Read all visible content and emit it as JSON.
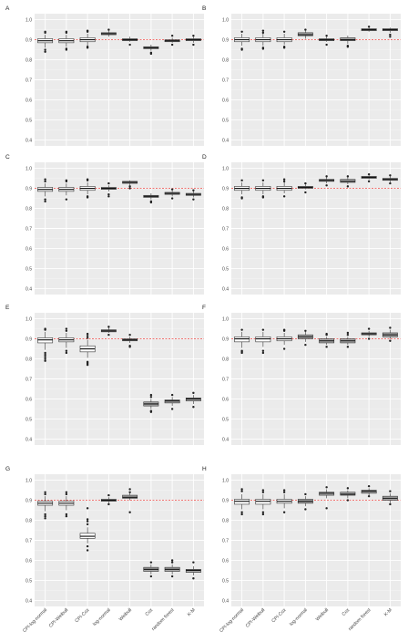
{
  "chart_data": {
    "type": "boxplot",
    "categories": [
      "CPI-log-normal",
      "CPI-Weibull",
      "CPI-Cox",
      "log-normal",
      "Weibull",
      "Cox",
      "random forest",
      "K-M"
    ],
    "ylim": [
      0.37,
      1.03
    ],
    "yticks": [
      "0.4",
      "0.5",
      "0.6",
      "0.7",
      "0.8",
      "0.9",
      "1.0"
    ],
    "reference_line": {
      "y": 0.9,
      "color": "#e8231f",
      "style": "dashed"
    },
    "grid": true,
    "colors": {
      "panel_bg": "#ebebeb",
      "grid": "#ffffff",
      "box_fill_cpi": "#ffffff",
      "box_fill_other": "#a8a8a8",
      "box_line": "#333333",
      "outlier": "#222222"
    },
    "panels": [
      {
        "label": "A",
        "boxes": [
          {
            "median": 0.895,
            "q1": 0.885,
            "q3": 0.905,
            "whisker_low": 0.86,
            "whisker_high": 0.925,
            "outliers": [
              0.84,
              0.85,
              0.935,
              0.94
            ]
          },
          {
            "median": 0.895,
            "q1": 0.885,
            "q3": 0.905,
            "whisker_low": 0.865,
            "whisker_high": 0.925,
            "outliers": [
              0.85,
              0.855,
              0.935,
              0.94
            ]
          },
          {
            "median": 0.9,
            "q1": 0.89,
            "q3": 0.91,
            "whisker_low": 0.87,
            "whisker_high": 0.93,
            "outliers": [
              0.86,
              0.865,
              0.94,
              0.945
            ]
          },
          {
            "median": 0.93,
            "q1": 0.925,
            "q3": 0.935,
            "whisker_low": 0.915,
            "whisker_high": 0.945,
            "outliers": [
              0.95
            ]
          },
          {
            "median": 0.9,
            "q1": 0.895,
            "q3": 0.905,
            "whisker_low": 0.89,
            "whisker_high": 0.915,
            "outliers": [
              0.875
            ]
          },
          {
            "median": 0.86,
            "q1": 0.855,
            "q3": 0.865,
            "whisker_low": 0.845,
            "whisker_high": 0.875,
            "outliers": [
              0.835,
              0.83
            ]
          },
          {
            "median": 0.895,
            "q1": 0.89,
            "q3": 0.9,
            "whisker_low": 0.885,
            "whisker_high": 0.91,
            "outliers": [
              0.875,
              0.92
            ]
          },
          {
            "median": 0.9,
            "q1": 0.895,
            "q3": 0.905,
            "whisker_low": 0.885,
            "whisker_high": 0.915,
            "outliers": [
              0.875,
              0.92
            ]
          }
        ]
      },
      {
        "label": "B",
        "boxes": [
          {
            "median": 0.9,
            "q1": 0.89,
            "q3": 0.91,
            "whisker_low": 0.87,
            "whisker_high": 0.93,
            "outliers": [
              0.85,
              0.855,
              0.94
            ]
          },
          {
            "median": 0.9,
            "q1": 0.89,
            "q3": 0.91,
            "whisker_low": 0.87,
            "whisker_high": 0.93,
            "outliers": [
              0.855,
              0.86,
              0.935,
              0.945
            ]
          },
          {
            "median": 0.9,
            "q1": 0.89,
            "q3": 0.91,
            "whisker_low": 0.875,
            "whisker_high": 0.93,
            "outliers": [
              0.86,
              0.865,
              0.94
            ]
          },
          {
            "median": 0.925,
            "q1": 0.92,
            "q3": 0.935,
            "whisker_low": 0.905,
            "whisker_high": 0.945,
            "outliers": [
              0.95
            ]
          },
          {
            "median": 0.9,
            "q1": 0.895,
            "q3": 0.905,
            "whisker_low": 0.89,
            "whisker_high": 0.915,
            "outliers": [
              0.875,
              0.92
            ]
          },
          {
            "median": 0.9,
            "q1": 0.895,
            "q3": 0.91,
            "whisker_low": 0.88,
            "whisker_high": 0.92,
            "outliers": [
              0.865,
              0.87
            ]
          },
          {
            "median": 0.95,
            "q1": 0.945,
            "q3": 0.955,
            "whisker_low": 0.94,
            "whisker_high": 0.96,
            "outliers": [
              0.965
            ]
          },
          {
            "median": 0.95,
            "q1": 0.945,
            "q3": 0.955,
            "whisker_low": 0.935,
            "whisker_high": 0.96,
            "outliers": [
              0.915,
              0.925
            ]
          }
        ]
      },
      {
        "label": "C",
        "boxes": [
          {
            "median": 0.895,
            "q1": 0.885,
            "q3": 0.905,
            "whisker_low": 0.86,
            "whisker_high": 0.925,
            "outliers": [
              0.835,
              0.845,
              0.935,
              0.945
            ]
          },
          {
            "median": 0.895,
            "q1": 0.885,
            "q3": 0.905,
            "whisker_low": 0.865,
            "whisker_high": 0.925,
            "outliers": [
              0.845,
              0.935,
              0.94
            ]
          },
          {
            "median": 0.9,
            "q1": 0.89,
            "q3": 0.91,
            "whisker_low": 0.87,
            "whisker_high": 0.93,
            "outliers": [
              0.855,
              0.86,
              0.94,
              0.945
            ]
          },
          {
            "median": 0.9,
            "q1": 0.895,
            "q3": 0.905,
            "whisker_low": 0.885,
            "whisker_high": 0.915,
            "outliers": [
              0.86,
              0.87,
              0.925
            ]
          },
          {
            "median": 0.93,
            "q1": 0.925,
            "q3": 0.935,
            "whisker_low": 0.915,
            "whisker_high": 0.94,
            "outliers": [
              0.9,
              0.91
            ]
          },
          {
            "median": 0.86,
            "q1": 0.855,
            "q3": 0.865,
            "whisker_low": 0.845,
            "whisker_high": 0.875,
            "outliers": [
              0.83,
              0.835
            ]
          },
          {
            "median": 0.875,
            "q1": 0.87,
            "q3": 0.88,
            "whisker_low": 0.86,
            "whisker_high": 0.89,
            "outliers": [
              0.85,
              0.895
            ]
          },
          {
            "median": 0.87,
            "q1": 0.865,
            "q3": 0.875,
            "whisker_low": 0.855,
            "whisker_high": 0.885,
            "outliers": [
              0.845,
              0.89
            ]
          }
        ]
      },
      {
        "label": "D",
        "boxes": [
          {
            "median": 0.9,
            "q1": 0.89,
            "q3": 0.91,
            "whisker_low": 0.87,
            "whisker_high": 0.93,
            "outliers": [
              0.85,
              0.855,
              0.94
            ]
          },
          {
            "median": 0.9,
            "q1": 0.89,
            "q3": 0.91,
            "whisker_low": 0.87,
            "whisker_high": 0.93,
            "outliers": [
              0.855,
              0.86,
              0.94
            ]
          },
          {
            "median": 0.9,
            "q1": 0.89,
            "q3": 0.91,
            "whisker_low": 0.875,
            "whisker_high": 0.93,
            "outliers": [
              0.86,
              0.935,
              0.945
            ]
          },
          {
            "median": 0.905,
            "q1": 0.9,
            "q3": 0.91,
            "whisker_low": 0.895,
            "whisker_high": 0.92,
            "outliers": [
              0.88,
              0.925
            ]
          },
          {
            "median": 0.94,
            "q1": 0.935,
            "q3": 0.945,
            "whisker_low": 0.925,
            "whisker_high": 0.955,
            "outliers": [
              0.915,
              0.96
            ]
          },
          {
            "median": 0.935,
            "q1": 0.93,
            "q3": 0.945,
            "whisker_low": 0.92,
            "whisker_high": 0.955,
            "outliers": [
              0.91,
              0.96
            ]
          },
          {
            "median": 0.955,
            "q1": 0.95,
            "q3": 0.96,
            "whisker_low": 0.945,
            "whisker_high": 0.965,
            "outliers": [
              0.935,
              0.97
            ]
          },
          {
            "median": 0.945,
            "q1": 0.94,
            "q3": 0.95,
            "whisker_low": 0.93,
            "whisker_high": 0.96,
            "outliers": [
              0.925,
              0.965
            ]
          }
        ]
      },
      {
        "label": "E",
        "boxes": [
          {
            "median": 0.895,
            "q1": 0.88,
            "q3": 0.905,
            "whisker_low": 0.845,
            "whisker_high": 0.935,
            "outliers": [
              0.79,
              0.8,
              0.81,
              0.82,
              0.83,
              0.945,
              0.95
            ]
          },
          {
            "median": 0.895,
            "q1": 0.885,
            "q3": 0.905,
            "whisker_low": 0.855,
            "whisker_high": 0.93,
            "outliers": [
              0.83,
              0.84,
              0.94,
              0.95
            ]
          },
          {
            "median": 0.85,
            "q1": 0.835,
            "q3": 0.865,
            "whisker_low": 0.805,
            "whisker_high": 0.895,
            "outliers": [
              0.77,
              0.775,
              0.78,
              0.785,
              0.905,
              0.915,
              0.925
            ]
          },
          {
            "median": 0.94,
            "q1": 0.935,
            "q3": 0.945,
            "whisker_low": 0.93,
            "whisker_high": 0.955,
            "outliers": [
              0.92,
              0.96
            ]
          },
          {
            "median": 0.895,
            "q1": 0.89,
            "q3": 0.9,
            "whisker_low": 0.88,
            "whisker_high": 0.91,
            "outliers": [
              0.86,
              0.865,
              0.92
            ]
          },
          {
            "median": 0.575,
            "q1": 0.565,
            "q3": 0.585,
            "whisker_low": 0.55,
            "whisker_high": 0.6,
            "outliers": [
              0.535,
              0.54,
              0.61,
              0.62
            ]
          },
          {
            "median": 0.59,
            "q1": 0.58,
            "q3": 0.595,
            "whisker_low": 0.565,
            "whisker_high": 0.61,
            "outliers": [
              0.55,
              0.62
            ]
          },
          {
            "median": 0.6,
            "q1": 0.59,
            "q3": 0.605,
            "whisker_low": 0.575,
            "whisker_high": 0.62,
            "outliers": [
              0.56,
              0.63
            ]
          }
        ]
      },
      {
        "label": "F",
        "boxes": [
          {
            "median": 0.9,
            "q1": 0.885,
            "q3": 0.91,
            "whisker_low": 0.855,
            "whisker_high": 0.935,
            "outliers": [
              0.83,
              0.835,
              0.84,
              0.945
            ]
          },
          {
            "median": 0.9,
            "q1": 0.885,
            "q3": 0.91,
            "whisker_low": 0.86,
            "whisker_high": 0.935,
            "outliers": [
              0.83,
              0.84,
              0.945
            ]
          },
          {
            "median": 0.9,
            "q1": 0.89,
            "q3": 0.91,
            "whisker_low": 0.87,
            "whisker_high": 0.93,
            "outliers": [
              0.85,
              0.94,
              0.945
            ]
          },
          {
            "median": 0.91,
            "q1": 0.9,
            "q3": 0.92,
            "whisker_low": 0.885,
            "whisker_high": 0.935,
            "outliers": [
              0.87,
              0.94
            ]
          },
          {
            "median": 0.89,
            "q1": 0.88,
            "q3": 0.9,
            "whisker_low": 0.87,
            "whisker_high": 0.91,
            "outliers": [
              0.86,
              0.92,
              0.925
            ]
          },
          {
            "median": 0.89,
            "q1": 0.88,
            "q3": 0.9,
            "whisker_low": 0.87,
            "whisker_high": 0.91,
            "outliers": [
              0.86,
              0.92,
              0.93
            ]
          },
          {
            "median": 0.925,
            "q1": 0.92,
            "q3": 0.93,
            "whisker_low": 0.91,
            "whisker_high": 0.94,
            "outliers": [
              0.9,
              0.95
            ]
          },
          {
            "median": 0.92,
            "q1": 0.91,
            "q3": 0.93,
            "whisker_low": 0.9,
            "whisker_high": 0.945,
            "outliers": [
              0.89,
              0.955
            ]
          }
        ]
      },
      {
        "label": "G",
        "boxes": [
          {
            "median": 0.885,
            "q1": 0.875,
            "q3": 0.895,
            "whisker_low": 0.845,
            "whisker_high": 0.92,
            "outliers": [
              0.81,
              0.82,
              0.83,
              0.93,
              0.94
            ]
          },
          {
            "median": 0.885,
            "q1": 0.875,
            "q3": 0.895,
            "whisker_low": 0.85,
            "whisker_high": 0.92,
            "outliers": [
              0.82,
              0.83,
              0.93,
              0.94
            ]
          },
          {
            "median": 0.72,
            "q1": 0.71,
            "q3": 0.735,
            "whisker_low": 0.685,
            "whisker_high": 0.765,
            "outliers": [
              0.65,
              0.67,
              0.78,
              0.795,
              0.805,
              0.86
            ]
          },
          {
            "median": 0.9,
            "q1": 0.895,
            "q3": 0.905,
            "whisker_low": 0.885,
            "whisker_high": 0.915,
            "outliers": [
              0.88,
              0.925
            ]
          },
          {
            "median": 0.915,
            "q1": 0.91,
            "q3": 0.925,
            "whisker_low": 0.9,
            "whisker_high": 0.935,
            "outliers": [
              0.84,
              0.94,
              0.955
            ]
          },
          {
            "median": 0.555,
            "q1": 0.545,
            "q3": 0.565,
            "whisker_low": 0.53,
            "whisker_high": 0.58,
            "outliers": [
              0.52,
              0.59
            ]
          },
          {
            "median": 0.555,
            "q1": 0.545,
            "q3": 0.565,
            "whisker_low": 0.53,
            "whisker_high": 0.58,
            "outliers": [
              0.52,
              0.59,
              0.6
            ]
          },
          {
            "median": 0.55,
            "q1": 0.54,
            "q3": 0.555,
            "whisker_low": 0.525,
            "whisker_high": 0.57,
            "outliers": [
              0.51,
              0.59
            ]
          }
        ]
      },
      {
        "label": "H",
        "boxes": [
          {
            "median": 0.895,
            "q1": 0.88,
            "q3": 0.905,
            "whisker_low": 0.855,
            "whisker_high": 0.93,
            "outliers": [
              0.83,
              0.84,
              0.945,
              0.955
            ]
          },
          {
            "median": 0.895,
            "q1": 0.88,
            "q3": 0.905,
            "whisker_low": 0.855,
            "whisker_high": 0.93,
            "outliers": [
              0.83,
              0.84,
              0.94,
              0.95
            ]
          },
          {
            "median": 0.895,
            "q1": 0.885,
            "q3": 0.905,
            "whisker_low": 0.86,
            "whisker_high": 0.93,
            "outliers": [
              0.84,
              0.94,
              0.95
            ]
          },
          {
            "median": 0.895,
            "q1": 0.885,
            "q3": 0.905,
            "whisker_low": 0.87,
            "whisker_high": 0.92,
            "outliers": [
              0.855,
              0.93
            ]
          },
          {
            "median": 0.935,
            "q1": 0.925,
            "q3": 0.94,
            "whisker_low": 0.91,
            "whisker_high": 0.955,
            "outliers": [
              0.86,
              0.965
            ]
          },
          {
            "median": 0.93,
            "q1": 0.925,
            "q3": 0.94,
            "whisker_low": 0.91,
            "whisker_high": 0.95,
            "outliers": [
              0.9,
              0.96
            ]
          },
          {
            "median": 0.945,
            "q1": 0.935,
            "q3": 0.95,
            "whisker_low": 0.925,
            "whisker_high": 0.96,
            "outliers": [
              0.92,
              0.97
            ]
          },
          {
            "median": 0.91,
            "q1": 0.9,
            "q3": 0.92,
            "whisker_low": 0.885,
            "whisker_high": 0.935,
            "outliers": [
              0.88,
              0.945
            ]
          }
        ]
      }
    ]
  }
}
